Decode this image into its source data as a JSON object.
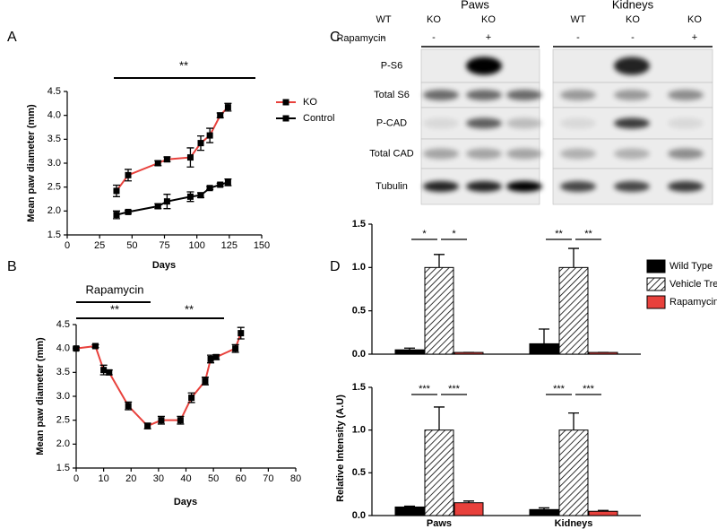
{
  "chart_data": [
    {
      "type": "line",
      "panel": "A",
      "annotations": [
        "**"
      ],
      "ylabel": "Mean paw diameter (mm)",
      "xlabel": "Days",
      "xlim": [
        0,
        150
      ],
      "xticks": [
        0,
        25,
        50,
        75,
        100,
        125,
        150
      ],
      "ylim": [
        1.5,
        4.5
      ],
      "yticks": [
        1.5,
        {
          "value": 2,
          "label": "2.0"
        },
        2.5,
        {
          "value": 3,
          "label": "3.0"
        },
        3.5,
        {
          "value": 4,
          "label": "4.0"
        },
        4.5
      ],
      "marker_color": "#000000",
      "series": [
        {
          "name": "KO",
          "color": "#e8413c",
          "x": [
            38,
            47,
            70,
            77,
            95,
            103,
            110,
            118,
            124
          ],
          "values": [
            2.42,
            2.75,
            3.0,
            3.08,
            3.12,
            3.42,
            3.58,
            4.0,
            4.17
          ],
          "errors": [
            0.12,
            0.12,
            0.05,
            0.05,
            0.2,
            0.15,
            0.15,
            0.05,
            0.08
          ]
        },
        {
          "name": "Control",
          "color": "#000000",
          "x": [
            38,
            47,
            70,
            77,
            95,
            103,
            110,
            118,
            124
          ],
          "values": [
            1.92,
            1.98,
            2.1,
            2.2,
            2.3,
            2.33,
            2.48,
            2.55,
            2.6
          ],
          "errors": [
            0.08,
            0.03,
            0.05,
            0.15,
            0.1,
            0.05,
            0.03,
            0.03,
            0.07
          ]
        }
      ]
    },
    {
      "type": "line",
      "panel": "B",
      "annotations": [
        "Rapamycin",
        "**",
        "**"
      ],
      "ylabel": "Mean paw diameter (mm)",
      "xlabel": "Days",
      "xlim": [
        0,
        80
      ],
      "xticks": [
        0,
        10,
        20,
        30,
        40,
        50,
        60,
        70,
        80
      ],
      "ylim": [
        1.5,
        4.5
      ],
      "yticks": [
        1.5,
        {
          "value": 2,
          "label": "2.0"
        },
        2.5,
        {
          "value": 3,
          "label": "3.0"
        },
        3.5,
        {
          "value": 4,
          "label": "4.0"
        },
        4.5
      ],
      "marker_color": "#000000",
      "series": [
        {
          "color": "#e8413c",
          "x": [
            0,
            7,
            10,
            12,
            19,
            26,
            31,
            38,
            42,
            47,
            49,
            51,
            58,
            60
          ],
          "values": [
            4.0,
            4.05,
            3.55,
            3.5,
            2.8,
            2.38,
            2.5,
            2.5,
            2.97,
            3.32,
            3.78,
            3.82,
            4.0,
            4.32
          ],
          "errors": [
            0.03,
            0.03,
            0.1,
            0.05,
            0.08,
            0.06,
            0.08,
            0.08,
            0.1,
            0.08,
            0.08,
            0.05,
            0.08,
            0.12
          ]
        }
      ]
    },
    {
      "type": "bar",
      "panel": "D",
      "annotations": [
        "*",
        "*",
        "**",
        "**"
      ],
      "categories": [
        null,
        null
      ],
      "ylim": [
        0,
        1.5
      ],
      "yticks": [
        {
          "value": 0,
          "label": "0.0"
        },
        0.5,
        {
          "value": 1,
          "label": "1.0"
        },
        1.5
      ],
      "series": [
        {
          "name": "Wild Type",
          "color": "#000000",
          "values": [
            0.05,
            0.12
          ],
          "errors": [
            0.02,
            0.17
          ]
        },
        {
          "name": "Vehicle Treated",
          "color": "#ffffff",
          "hatch": true,
          "values": [
            1.0,
            1.0
          ],
          "errors": [
            0.15,
            0.22
          ]
        },
        {
          "name": "Rapamycin Treated",
          "color": "#e8413c",
          "values": [
            0.02,
            0.02
          ],
          "errors": [
            0,
            0
          ]
        }
      ]
    },
    {
      "type": "bar",
      "annotations": [
        "***",
        "***",
        "***",
        "***"
      ],
      "ylabel": "Relative Intensity (A.U)",
      "categories": [
        "Paws",
        "Kidneys"
      ],
      "ylim": [
        0,
        1.5
      ],
      "yticks": [
        {
          "value": 0,
          "label": "0.0"
        },
        0.5,
        {
          "value": 1,
          "label": "1.0"
        },
        1.5
      ],
      "series": [
        {
          "color": "#000000",
          "values": [
            0.1,
            0.07
          ],
          "errors": [
            0.01,
            0.02
          ]
        },
        {
          "color": "#ffffff",
          "hatch": true,
          "values": [
            1.0,
            1.0
          ],
          "errors": [
            0.27,
            0.2
          ]
        },
        {
          "color": "#e8413c",
          "values": [
            0.15,
            0.05
          ],
          "errors": [
            0.02,
            0.01
          ]
        }
      ]
    }
  ],
  "blot": {
    "panel": "C",
    "treatment": "Rapamycin",
    "groups": [
      {
        "label": "Paws",
        "lanes": [
          "WT",
          "KO",
          "KO"
        ],
        "rapamycin": [
          "-",
          "-",
          "+"
        ]
      },
      {
        "label": "Kidneys",
        "lanes": [
          "WT",
          "KO",
          "KO"
        ],
        "rapamycin": [
          "-",
          "-",
          "+"
        ]
      }
    ],
    "rows": [
      "P-S6",
      "Total S6",
      "P-CAD",
      "Total CAD",
      "Tubulin"
    ]
  }
}
